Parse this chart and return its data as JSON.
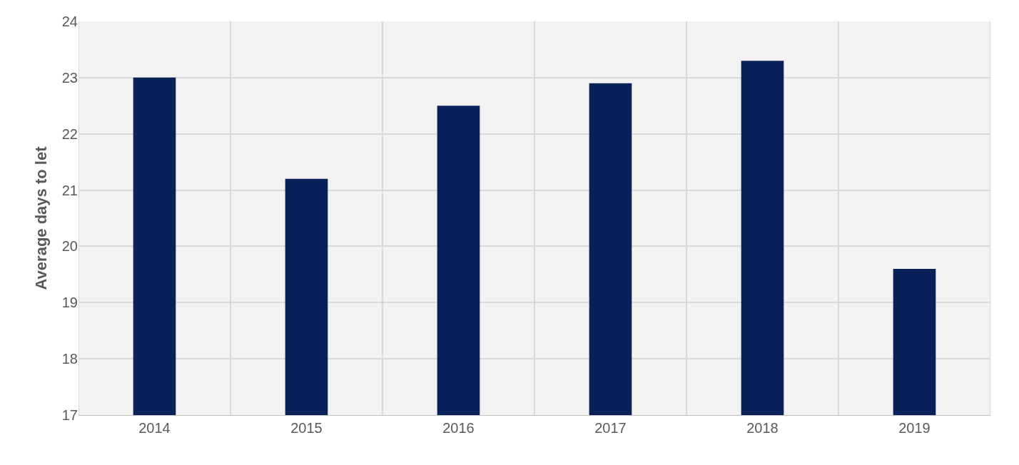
{
  "chart_data": {
    "type": "bar",
    "ylabel": "Average days to let",
    "categories": [
      "2014",
      "2015",
      "2016",
      "2017",
      "2018",
      "2019"
    ],
    "values": [
      23.0,
      21.2,
      22.5,
      22.9,
      23.3,
      19.6
    ],
    "color": "#0a2058",
    "ylim": [
      17,
      24
    ],
    "yticks": [
      17,
      18,
      19,
      20,
      21,
      22,
      23,
      24
    ],
    "grid": true
  }
}
